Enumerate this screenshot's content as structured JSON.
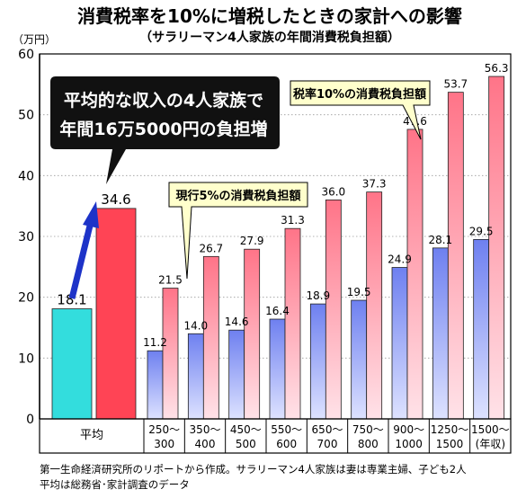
{
  "chart_data": {
    "type": "bar",
    "title": "消費税率を10%に増税したときの家計への影響",
    "subtitle": "（サラリーマン4人家族の年間消費税負担額）",
    "ylabel": "（万円）",
    "ylim": [
      0,
      60
    ],
    "yticks": [
      0,
      10,
      20,
      30,
      40,
      50,
      60
    ],
    "grid": true,
    "categories": [
      [
        "平均"
      ],
      [
        "250〜",
        "300"
      ],
      [
        "350〜",
        "400"
      ],
      [
        "450〜",
        "500"
      ],
      [
        "550〜",
        "600"
      ],
      [
        "650〜",
        "700"
      ],
      [
        "750〜",
        "800"
      ],
      [
        "900〜",
        "1000"
      ],
      [
        "1250〜",
        "1500"
      ],
      [
        "1500〜",
        "(年収)"
      ]
    ],
    "series": [
      {
        "values": [
          18.1,
          11.2,
          14.0,
          14.6,
          16.4,
          18.9,
          19.5,
          24.9,
          28.1,
          29.5
        ]
      },
      {
        "values": [
          34.6,
          21.5,
          26.7,
          27.9,
          31.3,
          36.0,
          37.3,
          47.6,
          53.7,
          56.3
        ]
      }
    ],
    "value_labels": [
      [
        "18.1",
        "11.2",
        "14.0",
        "14.6",
        "16.4",
        "18.9",
        "19.5",
        "24.9",
        "28.1",
        "29.5"
      ],
      [
        "34.6",
        "21.5",
        "26.7",
        "27.9",
        "31.3",
        "36.0",
        "37.3",
        "47.6",
        "53.7",
        "56.3"
      ]
    ],
    "annotations": {
      "callout_main": [
        "平均的な収入の4人家族で",
        "年間16万5000円の負担増"
      ],
      "callout_current": "現行5%の消費税負担額",
      "callout_new": "税率10%の消費税負担額"
    },
    "colors": {
      "avg_current": "#33dddd",
      "avg_new": "#ff4455",
      "current_top": "#6e80f0",
      "current_bottom": "#dde2ff",
      "new_top": "#ff7488",
      "new_bottom": "#ffe2e8",
      "arrow": "#1d33c8",
      "callout_bg": "#111111"
    }
  },
  "footnote": [
    "第一生命経済研究所のリポートから作成。サラリーマン4人家族は妻は専業主婦、子ども2人",
    "平均は総務省･家計調査のデータ"
  ]
}
